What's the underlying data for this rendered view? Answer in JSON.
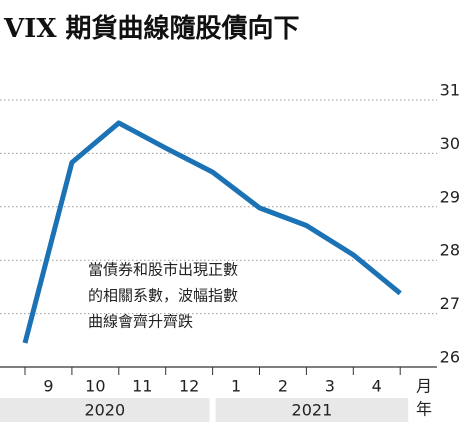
{
  "chart_data": {
    "type": "line",
    "title": "VIX 期貨曲線隨股債向下",
    "categories": [
      "9",
      "10",
      "11",
      "12",
      "1",
      "2",
      "3",
      "4",
      null
    ],
    "series": [
      {
        "name": "VIX",
        "color": "#1b72b5",
        "values": [
          26.45,
          29.83,
          30.57,
          30.1,
          29.65,
          28.98,
          28.65,
          28.1,
          27.38
        ]
      }
    ],
    "ylim": [
      26,
      31
    ],
    "yticks": [
      26,
      27,
      28,
      29,
      30,
      31
    ],
    "grid": true,
    "x_axis_label": "月",
    "year_axis_label": "年",
    "year_groups": [
      {
        "label": "2020",
        "span": [
          0,
          4
        ]
      },
      {
        "label": "2021",
        "span": [
          4,
          8
        ]
      }
    ],
    "annotation": [
      "當債券和股市出現正數",
      "的相關系數，波幅指數",
      "曲線會齊升齊跌"
    ]
  }
}
